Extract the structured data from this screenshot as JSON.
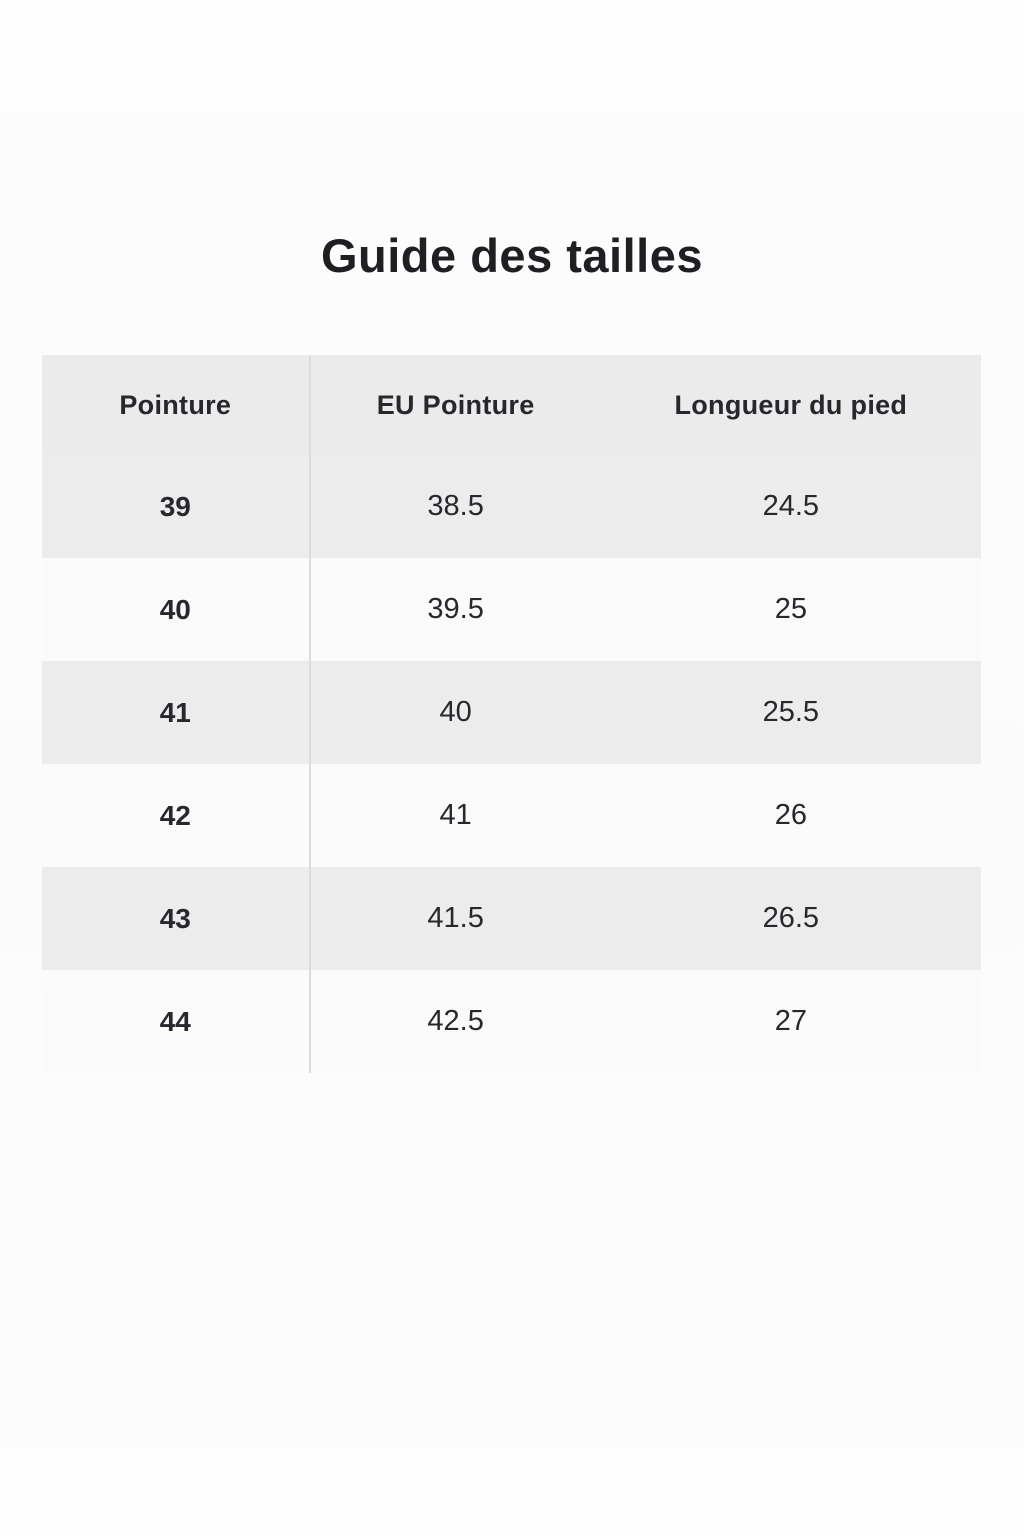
{
  "page": {
    "title": "Guide des tailles"
  },
  "table": {
    "headers": [
      "Pointure",
      "EU Pointure",
      "Longueur du pied"
    ],
    "rows": [
      [
        "39",
        "38.5",
        "24.5"
      ],
      [
        "40",
        "39.5",
        "25"
      ],
      [
        "41",
        "40",
        "25.5"
      ],
      [
        "42",
        "41",
        "26"
      ],
      [
        "43",
        "41.5",
        "26.5"
      ],
      [
        "44",
        "42.5",
        "27"
      ]
    ],
    "colors": {
      "header_bg": "#ebebeb",
      "row_bg": "#fafafa",
      "row_alt_bg": "#ececec",
      "divider": "#dcdcdc",
      "text": "#26282d",
      "page_bg": "#fcfcfc"
    }
  }
}
